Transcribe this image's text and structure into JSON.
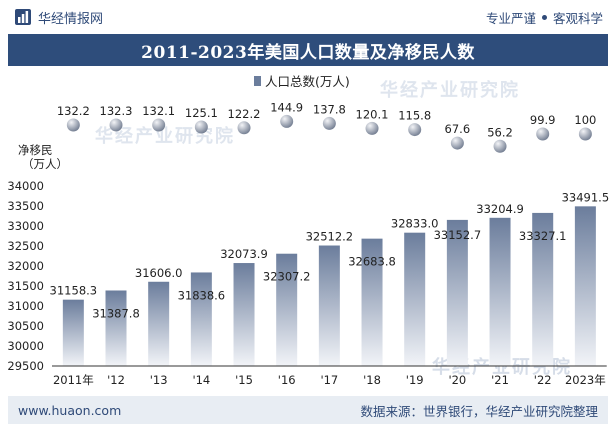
{
  "header": {
    "brand_name": "华经情报网",
    "tagline_left": "专业严谨",
    "tagline_right": "客观科学"
  },
  "footer": {
    "url": "www.huaon.com",
    "source": "数据来源：世界银行，华经产业研究院整理"
  },
  "watermark": "华经产业研究院",
  "colors": {
    "title_bar": "#2e4d7b",
    "bar_dark": "#6b7d9c",
    "bar_light": "#f2f4f8",
    "dot_dark": "#707b8f",
    "dot_light": "#f3f4f7",
    "footer_bg": "#e8edf3"
  },
  "chart_data": {
    "type": "bar",
    "title": "2011-2023年美国人口数量及净移民人数",
    "categories": [
      "2011年",
      "'12",
      "'13",
      "'14",
      "'15",
      "'16",
      "'17",
      "'18",
      "'19",
      "'20",
      "'21",
      "'22",
      "2023年"
    ],
    "series": [
      {
        "name": "人口总数(万人)",
        "type": "bar",
        "values": [
          31158.3,
          31387.8,
          31606.0,
          31838.6,
          32073.9,
          32307.2,
          32512.2,
          32683.8,
          32833.0,
          33152.7,
          33204.9,
          33327.1,
          33491.5
        ],
        "labels": [
          "31158.3",
          "31387.8",
          "31606.0",
          "31838.6",
          "32073.9",
          "32307.2",
          "32512.2",
          "32683.8",
          "32833.0",
          "33152.7",
          "33204.9",
          "33327.1",
          "33491.5"
        ]
      },
      {
        "name": "净移民（万人）",
        "type": "dot",
        "values": [
          132.2,
          132.3,
          132.1,
          125.1,
          122.2,
          144.9,
          137.8,
          120.1,
          115.8,
          67.6,
          56.2,
          99.9,
          100
        ],
        "labels": [
          "132.2",
          "132.3",
          "132.1",
          "125.1",
          "122.2",
          "144.9",
          "137.8",
          "120.1",
          "115.8",
          "67.6",
          "56.2",
          "99.9",
          "100"
        ]
      }
    ],
    "ylim": [
      29500,
      34000
    ],
    "yticks": [
      "34000",
      "33500",
      "33000",
      "32500",
      "32000",
      "31500",
      "31000",
      "30500",
      "30000",
      "29500"
    ],
    "migration_axis_label": [
      "净移民",
      "（万人）"
    ],
    "legend_position": "top-center",
    "grid": false
  }
}
